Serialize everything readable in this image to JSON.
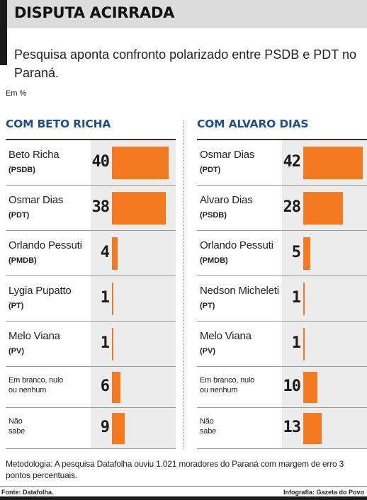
{
  "title": "DISPUTA ACIRRADA",
  "subtitle": "Pesquisa aponta confronto polarizado entre PSDB e PDT no Paraná.",
  "unit_note": "Em %",
  "methodology": "Metodologia: A pesquisa Datafolha ouviu 1.021 moradores do Paraná com margem de erro 3 pontos percentuais.",
  "source": "Fonte: Datafolha.",
  "credit": "Infografia: Gazeta do Povo",
  "colors": {
    "bar": "#f47920",
    "heading": "#1f4e8c",
    "value_bg": "#ececec"
  },
  "chart_data": [
    {
      "type": "bar",
      "orientation": "horizontal",
      "title": "COM BETO RICHA",
      "categories": [
        {
          "name": "Beto Richa",
          "party": "(PSDB)"
        },
        {
          "name": "Osmar Dias",
          "party": "(PDT)"
        },
        {
          "name": "Orlando Pessuti",
          "party": "(PMDB)"
        },
        {
          "name": "Lygia Pupatto",
          "party": "(PT)"
        },
        {
          "name": "Melo Viana",
          "party": "(PV)"
        },
        {
          "lines": [
            "Em branco, nulo",
            "ou nenhum"
          ]
        },
        {
          "lines": [
            "Não",
            "sabe"
          ]
        }
      ],
      "values": [
        40,
        38,
        4,
        1,
        1,
        6,
        9
      ],
      "xlim": [
        0,
        42
      ]
    },
    {
      "type": "bar",
      "orientation": "horizontal",
      "title": "COM ALVARO DIAS",
      "categories": [
        {
          "name": "Osmar Dias",
          "party": "(PDT)"
        },
        {
          "name": "Alvaro Dias",
          "party": "(PSDB)"
        },
        {
          "name": "Orlando Pessuti",
          "party": "(PMDB)"
        },
        {
          "name": "Nedson Micheleti",
          "party": "(PT)"
        },
        {
          "name": "Melo Viana",
          "party": "(PV)"
        },
        {
          "lines": [
            "Em branco, nulo",
            "ou nenhum"
          ]
        },
        {
          "lines": [
            "Não",
            "sabe"
          ]
        }
      ],
      "values": [
        42,
        28,
        5,
        1,
        1,
        10,
        13
      ],
      "xlim": [
        0,
        42
      ]
    }
  ]
}
